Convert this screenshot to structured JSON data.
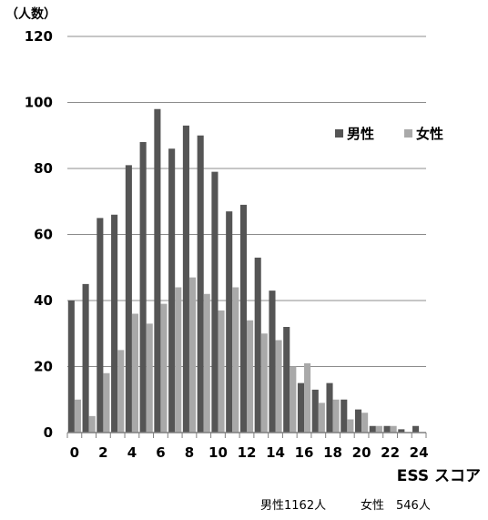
{
  "chart_data": {
    "type": "bar",
    "ylabel": "（人数）",
    "xlabel": "ESS スコア",
    "ylim": [
      0,
      120
    ],
    "y_ticks": [
      0,
      20,
      40,
      60,
      80,
      100,
      120
    ],
    "x_tick_labels": [
      "0",
      "2",
      "4",
      "6",
      "8",
      "10",
      "12",
      "14",
      "16",
      "18",
      "20",
      "22",
      "24"
    ],
    "categories": [
      0,
      1,
      2,
      3,
      4,
      5,
      6,
      7,
      8,
      9,
      10,
      11,
      12,
      13,
      14,
      15,
      16,
      17,
      18,
      19,
      20,
      21,
      22,
      23,
      24
    ],
    "grid": true,
    "legend_position": "right",
    "series": [
      {
        "name": "男性",
        "color": "#555555",
        "values": [
          40,
          45,
          65,
          66,
          81,
          88,
          98,
          86,
          93,
          90,
          79,
          67,
          69,
          53,
          43,
          32,
          15,
          13,
          15,
          10,
          7,
          2,
          2,
          1,
          2
        ]
      },
      {
        "name": "女性",
        "color": "#a9a9a9",
        "values": [
          10,
          5,
          18,
          25,
          36,
          33,
          39,
          44,
          47,
          42,
          37,
          44,
          34,
          30,
          28,
          20,
          21,
          9,
          10,
          4,
          6,
          2,
          2,
          0,
          0
        ]
      }
    ],
    "totals": {
      "male": "男性1162人",
      "female": "女性　546人"
    }
  }
}
